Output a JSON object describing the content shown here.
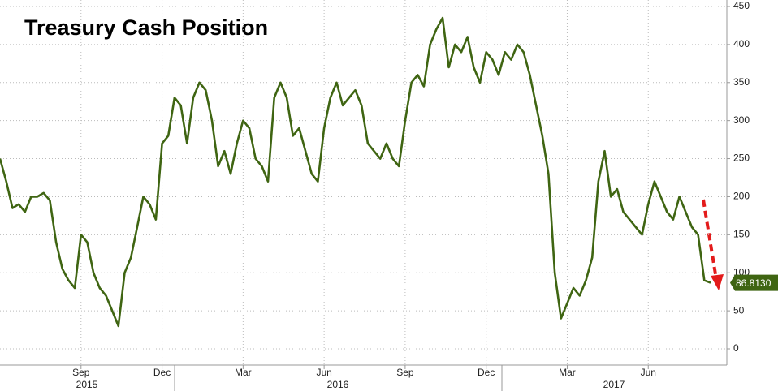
{
  "chart_data": {
    "type": "line",
    "title": "Treasury Cash Position",
    "categories": [
      null,
      null,
      null,
      null,
      null,
      null,
      null,
      null,
      null,
      null,
      null,
      null,
      null,
      "Sep",
      null,
      null,
      null,
      null,
      null,
      null,
      null,
      null,
      null,
      null,
      null,
      null,
      "Dec",
      null,
      null,
      null,
      null,
      null,
      null,
      null,
      null,
      null,
      null,
      null,
      null,
      "Mar",
      null,
      null,
      null,
      null,
      null,
      null,
      null,
      null,
      null,
      null,
      null,
      null,
      "Jun",
      null,
      null,
      null,
      null,
      null,
      null,
      null,
      null,
      null,
      null,
      null,
      null,
      "Sep",
      null,
      null,
      null,
      null,
      null,
      null,
      null,
      null,
      null,
      null,
      null,
      null,
      "Dec",
      null,
      null,
      null,
      null,
      null,
      null,
      null,
      null,
      null,
      null,
      null,
      null,
      "Mar",
      null,
      null,
      null,
      null,
      null,
      null,
      null,
      null,
      null,
      null,
      null,
      null,
      "Jun",
      null,
      null,
      null,
      null,
      null,
      null,
      null,
      null,
      null,
      null
    ],
    "year_labels": [
      "2015",
      "2016",
      "2017"
    ],
    "color": "#3f6512",
    "values": [
      250,
      220,
      185,
      190,
      180,
      200,
      200,
      205,
      195,
      140,
      105,
      90,
      80,
      150,
      140,
      100,
      80,
      70,
      50,
      30,
      100,
      120,
      160,
      200,
      190,
      170,
      270,
      280,
      330,
      320,
      270,
      330,
      350,
      340,
      300,
      240,
      260,
      230,
      270,
      300,
      290,
      250,
      240,
      220,
      330,
      350,
      330,
      280,
      290,
      260,
      230,
      220,
      290,
      330,
      350,
      320,
      330,
      340,
      320,
      270,
      260,
      250,
      270,
      250,
      240,
      300,
      350,
      360,
      345,
      400,
      420,
      435,
      370,
      400,
      390,
      410,
      370,
      350,
      390,
      380,
      360,
      390,
      380,
      400,
      390,
      360,
      320,
      280,
      230,
      100,
      40,
      60,
      80,
      70,
      90,
      120,
      220,
      260,
      200,
      210,
      180,
      170,
      160,
      150,
      190,
      220,
      200,
      180,
      170,
      200,
      180,
      160,
      150,
      90,
      86.813
    ],
    "value_labels": [
      null,
      null,
      null,
      null,
      null,
      null,
      null,
      null,
      null,
      null,
      null,
      null,
      null,
      null,
      null,
      null,
      null,
      null,
      null,
      null,
      null,
      null,
      null,
      null,
      null,
      null,
      null,
      null,
      null,
      null,
      null,
      null,
      null,
      null,
      null,
      null,
      null,
      null,
      null,
      null,
      null,
      null,
      null,
      null,
      null,
      null,
      null,
      null,
      null,
      null,
      null,
      null,
      null,
      null,
      null,
      null,
      null,
      null,
      null,
      null,
      null,
      null,
      null,
      null,
      null,
      null,
      null,
      null,
      null,
      null,
      null,
      null,
      null,
      null,
      null,
      null,
      null,
      null,
      null,
      null,
      null,
      null,
      null,
      null,
      null,
      null,
      null,
      null,
      null,
      null,
      null,
      null,
      null,
      null,
      null,
      null,
      null,
      null,
      null,
      null,
      null,
      null,
      null,
      null,
      null,
      null,
      null,
      null,
      null,
      null,
      null,
      null,
      null,
      null,
      "86.8130"
    ],
    "ylim": [
      0,
      450
    ],
    "yticks": [
      0,
      50,
      100,
      150,
      200,
      250,
      300,
      350,
      400,
      450
    ],
    "grid": true
  }
}
